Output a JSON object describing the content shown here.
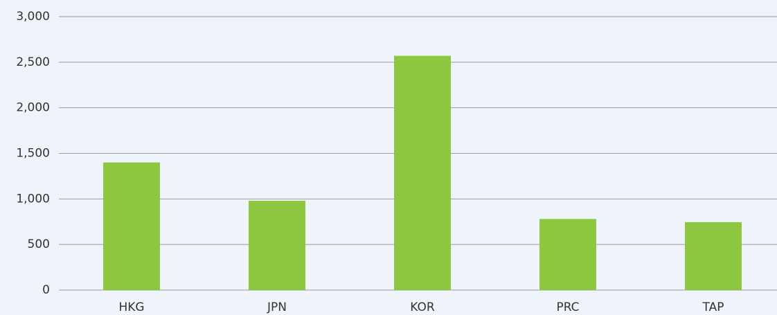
{
  "chart_data": {
    "type": "bar",
    "categories": [
      "HKG",
      "JPN",
      "KOR",
      "PRC",
      "TAP"
    ],
    "values": [
      1400,
      980,
      2570,
      780,
      745
    ],
    "color": "#8dc63f",
    "ylim": [
      0,
      3000
    ],
    "yticks": [
      0,
      500,
      {
        "value": 1000,
        "label": "1,000"
      },
      {
        "value": 1500,
        "label": "1,500"
      },
      {
        "value": 2000,
        "label": "2,000"
      },
      {
        "value": 2500,
        "label": "2,500"
      },
      {
        "value": 3000,
        "label": "3,000"
      }
    ],
    "grid": true
  }
}
